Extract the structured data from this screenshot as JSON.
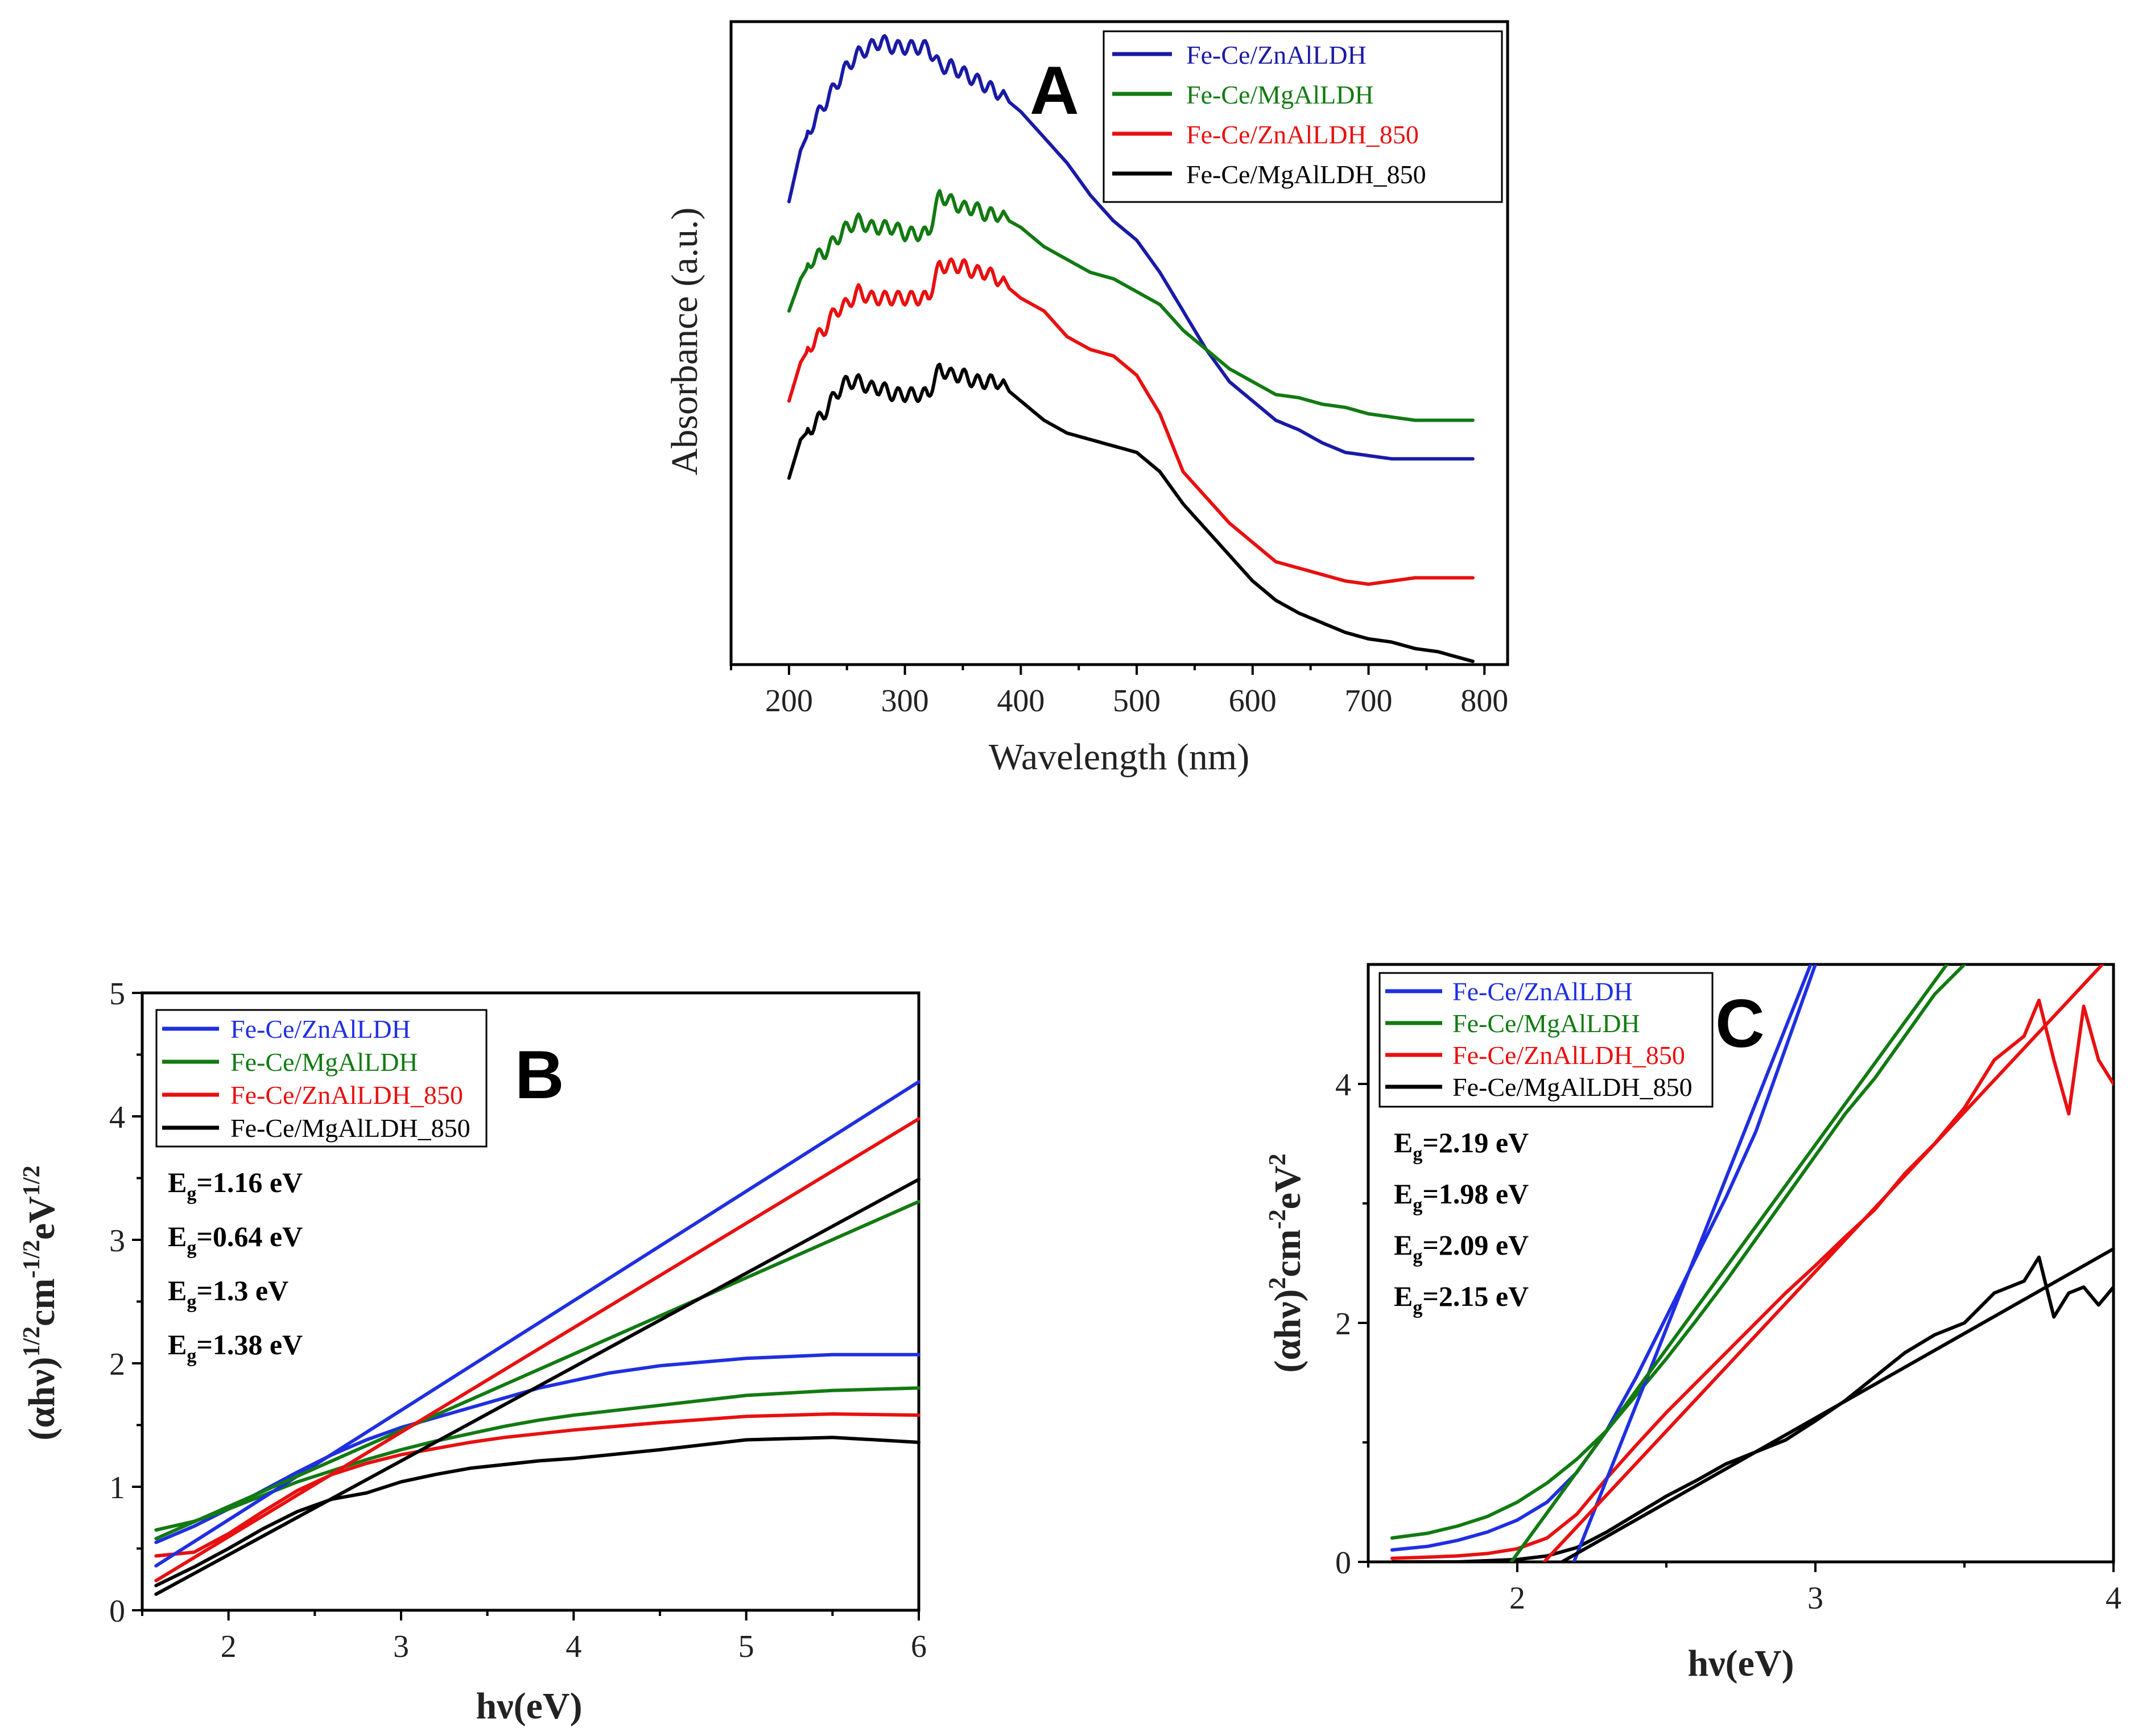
{
  "colors": {
    "zn": "#1a1aa6",
    "mg": "#127a12",
    "zn850": "#e81010",
    "mg850": "#000000",
    "zn_bc": "#1f2fe0"
  },
  "chart_data": [
    {
      "id": "A",
      "type": "line",
      "panel_label": "A",
      "xlabel": "Wavelength (nm)",
      "ylabel": "Absorbance (a.u.)",
      "xlim": [
        150,
        820
      ],
      "ylim": [
        0,
        1
      ],
      "xticks": [
        200,
        300,
        400,
        500,
        600,
        700,
        800
      ],
      "yticks": [],
      "legend": [
        "Fe-Ce/ZnAlLDH",
        "Fe-Ce/MgAlLDH",
        "Fe-Ce/ZnAlLDH_850",
        "Fe-Ce/MgAlLDH_850"
      ],
      "series": [
        {
          "name": "Fe-Ce/ZnAlLDH",
          "color_key": "zn",
          "x": [
            200,
            210,
            220,
            230,
            240,
            250,
            260,
            270,
            280,
            290,
            300,
            310,
            320,
            330,
            340,
            350,
            360,
            370,
            380,
            400,
            420,
            440,
            460,
            480,
            500,
            520,
            540,
            560,
            580,
            600,
            620,
            640,
            660,
            680,
            700,
            720,
            740,
            760,
            780,
            790
          ],
          "y": [
            0.72,
            0.8,
            0.84,
            0.87,
            0.9,
            0.93,
            0.95,
            0.96,
            0.97,
            0.96,
            0.96,
            0.96,
            0.96,
            0.93,
            0.93,
            0.92,
            0.91,
            0.9,
            0.89,
            0.86,
            0.82,
            0.78,
            0.73,
            0.69,
            0.66,
            0.61,
            0.55,
            0.49,
            0.44,
            0.41,
            0.38,
            0.365,
            0.345,
            0.33,
            0.325,
            0.32,
            0.32,
            0.32,
            0.32,
            0.32
          ]
        },
        {
          "name": "Fe-Ce/MgAlLDH",
          "color_key": "mg",
          "x": [
            200,
            210,
            220,
            230,
            240,
            250,
            260,
            270,
            280,
            290,
            300,
            310,
            320,
            330,
            340,
            350,
            360,
            370,
            380,
            400,
            420,
            440,
            460,
            480,
            500,
            520,
            540,
            560,
            580,
            600,
            620,
            640,
            660,
            680,
            700,
            720,
            740,
            760,
            780,
            790
          ],
          "y": [
            0.55,
            0.6,
            0.63,
            0.64,
            0.66,
            0.68,
            0.69,
            0.68,
            0.68,
            0.68,
            0.67,
            0.67,
            0.67,
            0.73,
            0.72,
            0.71,
            0.71,
            0.7,
            0.7,
            0.68,
            0.65,
            0.63,
            0.61,
            0.6,
            0.58,
            0.56,
            0.52,
            0.49,
            0.46,
            0.44,
            0.42,
            0.415,
            0.405,
            0.4,
            0.39,
            0.385,
            0.38,
            0.38,
            0.38,
            0.38
          ]
        },
        {
          "name": "Fe-Ce/ZnAlLDH_850",
          "color_key": "zn850",
          "x": [
            200,
            210,
            220,
            230,
            240,
            250,
            260,
            270,
            280,
            290,
            300,
            310,
            320,
            330,
            340,
            350,
            360,
            370,
            380,
            400,
            420,
            440,
            460,
            480,
            500,
            520,
            540,
            560,
            580,
            600,
            620,
            640,
            660,
            680,
            700,
            720,
            740,
            760,
            780,
            790
          ],
          "y": [
            0.41,
            0.47,
            0.5,
            0.52,
            0.55,
            0.56,
            0.58,
            0.57,
            0.57,
            0.57,
            0.57,
            0.57,
            0.57,
            0.62,
            0.62,
            0.62,
            0.61,
            0.61,
            0.6,
            0.57,
            0.55,
            0.51,
            0.49,
            0.48,
            0.45,
            0.39,
            0.3,
            0.26,
            0.22,
            0.19,
            0.16,
            0.15,
            0.14,
            0.13,
            0.125,
            0.13,
            0.135,
            0.135,
            0.135,
            0.135
          ]
        },
        {
          "name": "Fe-Ce/MgAlLDH_850",
          "color_key": "mg850",
          "x": [
            200,
            210,
            220,
            230,
            240,
            250,
            260,
            270,
            280,
            290,
            300,
            310,
            320,
            330,
            340,
            350,
            360,
            370,
            380,
            400,
            420,
            440,
            460,
            480,
            500,
            520,
            540,
            560,
            580,
            600,
            620,
            640,
            660,
            680,
            700,
            720,
            740,
            760,
            780,
            790
          ],
          "y": [
            0.29,
            0.35,
            0.37,
            0.39,
            0.42,
            0.44,
            0.44,
            0.43,
            0.43,
            0.42,
            0.42,
            0.42,
            0.42,
            0.46,
            0.45,
            0.45,
            0.44,
            0.44,
            0.44,
            0.41,
            0.38,
            0.36,
            0.35,
            0.34,
            0.33,
            0.3,
            0.25,
            0.21,
            0.17,
            0.13,
            0.1,
            0.08,
            0.065,
            0.05,
            0.04,
            0.035,
            0.025,
            0.02,
            0.01,
            0.005
          ]
        }
      ]
    },
    {
      "id": "B",
      "type": "line",
      "panel_label": "B",
      "xlabel": "hν(eV)",
      "ylabel": "(αhν)^1/2cm^-1/2eV^1/2",
      "ylabel_parts": {
        "base1": "(αhν)",
        "sup1": "1/2",
        "base2": "cm",
        "sup2": "-1/2",
        "base3": "eV",
        "sup3": "1/2"
      },
      "xlim": [
        1.5,
        6
      ],
      "ylim": [
        0,
        5
      ],
      "xticks": [
        2,
        3,
        4,
        5,
        6
      ],
      "yticks": [
        0,
        1,
        2,
        3,
        4,
        5
      ],
      "legend": [
        "Fe-Ce/ZnAlLDH",
        "Fe-Ce/MgAlLDH",
        "Fe-Ce/ZnAlLDH_850",
        "Fe-Ce/MgAlLDH_850"
      ],
      "annotations": [
        {
          "label": "E",
          "sub": "g",
          "value": "=1.16 eV"
        },
        {
          "label": "E",
          "sub": "g",
          "value": "=0.64 eV"
        },
        {
          "label": "E",
          "sub": "g",
          "value": "=1.3 eV"
        },
        {
          "label": "E",
          "sub": "g",
          "value": "=1.38 eV"
        }
      ],
      "series": [
        {
          "name": "Fe-Ce/ZnAlLDH",
          "color_key": "zn_bc",
          "x": [
            1.58,
            1.8,
            2.0,
            2.2,
            2.4,
            2.6,
            2.8,
            3.0,
            3.2,
            3.4,
            3.6,
            3.8,
            4.0,
            4.2,
            4.5,
            5.0,
            5.5,
            6.0
          ],
          "y": [
            0.55,
            0.68,
            0.82,
            0.97,
            1.12,
            1.26,
            1.38,
            1.48,
            1.56,
            1.64,
            1.72,
            1.8,
            1.86,
            1.92,
            1.98,
            2.04,
            2.07,
            2.07
          ]
        },
        {
          "name": "Fe-Ce/MgAlLDH",
          "color_key": "mg",
          "x": [
            1.58,
            1.8,
            2.0,
            2.2,
            2.4,
            2.6,
            2.8,
            3.0,
            3.2,
            3.4,
            3.6,
            3.8,
            4.0,
            4.5,
            5.0,
            5.5,
            6.0
          ],
          "y": [
            0.65,
            0.72,
            0.82,
            0.93,
            1.04,
            1.13,
            1.22,
            1.3,
            1.37,
            1.43,
            1.49,
            1.54,
            1.58,
            1.66,
            1.74,
            1.78,
            1.8
          ]
        },
        {
          "name": "Fe-Ce/ZnAlLDH_850",
          "color_key": "zn850",
          "x": [
            1.58,
            1.8,
            2.0,
            2.2,
            2.4,
            2.6,
            2.8,
            3.0,
            3.2,
            3.4,
            3.6,
            3.8,
            4.0,
            4.5,
            5.0,
            5.5,
            6.0
          ],
          "y": [
            0.44,
            0.47,
            0.62,
            0.8,
            0.97,
            1.1,
            1.19,
            1.26,
            1.31,
            1.36,
            1.4,
            1.43,
            1.46,
            1.52,
            1.57,
            1.59,
            1.58
          ]
        },
        {
          "name": "Fe-Ce/MgAlLDH_850",
          "color_key": "mg850",
          "x": [
            1.58,
            1.8,
            2.0,
            2.2,
            2.4,
            2.6,
            2.8,
            3.0,
            3.2,
            3.4,
            3.6,
            3.8,
            4.0,
            4.5,
            5.0,
            5.5,
            6.0
          ],
          "y": [
            0.2,
            0.35,
            0.5,
            0.66,
            0.8,
            0.9,
            0.95,
            1.04,
            1.1,
            1.15,
            1.18,
            1.21,
            1.23,
            1.3,
            1.38,
            1.4,
            1.36
          ]
        },
        {
          "name": "fit-ZnAlLDH",
          "color_key": "zn_bc",
          "fit": true,
          "x": [
            1.58,
            6.0
          ],
          "y": [
            0.36,
            4.28
          ]
        },
        {
          "name": "fit-MgAlLDH",
          "color_key": "mg",
          "fit": true,
          "x": [
            1.58,
            6.0
          ],
          "y": [
            0.58,
            3.31
          ]
        },
        {
          "name": "fit-ZnAlLDH_850",
          "color_key": "zn850",
          "fit": true,
          "x": [
            1.58,
            6.0
          ],
          "y": [
            0.24,
            3.98
          ]
        },
        {
          "name": "fit-MgAlLDH_850",
          "color_key": "mg850",
          "fit": true,
          "x": [
            1.58,
            6.0
          ],
          "y": [
            0.13,
            3.49
          ]
        }
      ]
    },
    {
      "id": "C",
      "type": "line",
      "panel_label": "C",
      "xlabel": "hν(eV)",
      "ylabel": "(αhν)^2cm^-2eV^2",
      "ylabel_parts": {
        "base1": "(αhν)",
        "sup1": "2",
        "base2": "cm",
        "sup2": "-2",
        "base3": "eV",
        "sup3": "2"
      },
      "xlim": [
        1.5,
        4
      ],
      "ylim": [
        0,
        5
      ],
      "xticks": [
        2,
        3,
        4
      ],
      "yticks": [
        0,
        2,
        4
      ],
      "legend": [
        "Fe-Ce/ZnAlLDH",
        "Fe-Ce/MgAlLDH",
        "Fe-Ce/ZnAlLDH_850",
        "Fe-Ce/MgAlLDH_850"
      ],
      "annotations": [
        {
          "label": "E",
          "sub": "g",
          "value": "=2.19 eV"
        },
        {
          "label": "E",
          "sub": "g",
          "value": "=1.98 eV"
        },
        {
          "label": "E",
          "sub": "g",
          "value": "=2.09 eV"
        },
        {
          "label": "E",
          "sub": "g",
          "value": "=2.15 eV"
        }
      ],
      "series": [
        {
          "name": "Fe-Ce/ZnAlLDH",
          "color_key": "zn_bc",
          "x": [
            1.58,
            1.7,
            1.8,
            1.9,
            2.0,
            2.1,
            2.2,
            2.3,
            2.4,
            2.5,
            2.6,
            2.7,
            2.8,
            2.9,
            3.0
          ],
          "y": [
            0.1,
            0.13,
            0.18,
            0.25,
            0.35,
            0.5,
            0.75,
            1.1,
            1.55,
            2.05,
            2.55,
            3.05,
            3.6,
            4.3,
            5.0
          ]
        },
        {
          "name": "Fe-Ce/MgAlLDH",
          "color_key": "mg",
          "x": [
            1.58,
            1.7,
            1.8,
            1.9,
            2.0,
            2.1,
            2.2,
            2.3,
            2.4,
            2.5,
            2.6,
            2.7,
            2.8,
            2.9,
            3.0,
            3.1,
            3.2,
            3.3,
            3.4,
            3.5
          ],
          "y": [
            0.2,
            0.24,
            0.3,
            0.38,
            0.5,
            0.66,
            0.86,
            1.1,
            1.4,
            1.7,
            2.02,
            2.35,
            2.7,
            3.05,
            3.4,
            3.75,
            4.05,
            4.4,
            4.75,
            5.0
          ]
        },
        {
          "name": "Fe-Ce/ZnAlLDH_850",
          "color_key": "zn850",
          "x": [
            1.58,
            1.7,
            1.8,
            1.9,
            2.0,
            2.1,
            2.2,
            2.3,
            2.4,
            2.5,
            2.6,
            2.7,
            2.8,
            2.9,
            3.0,
            3.1,
            3.2,
            3.3,
            3.4,
            3.5,
            3.6,
            3.7,
            3.75,
            3.8,
            3.85,
            3.9,
            3.95,
            4.0
          ],
          "y": [
            0.03,
            0.04,
            0.05,
            0.07,
            0.11,
            0.2,
            0.4,
            0.7,
            0.98,
            1.25,
            1.5,
            1.75,
            2.0,
            2.25,
            2.48,
            2.72,
            2.95,
            3.25,
            3.5,
            3.8,
            4.2,
            4.4,
            4.7,
            4.2,
            3.75,
            4.65,
            4.2,
            4.0
          ]
        },
        {
          "name": "Fe-Ce/MgAlLDH_850",
          "color_key": "mg850",
          "x": [
            1.58,
            1.7,
            1.8,
            1.9,
            2.0,
            2.1,
            2.2,
            2.3,
            2.4,
            2.5,
            2.6,
            2.7,
            2.8,
            2.9,
            3.0,
            3.1,
            3.2,
            3.3,
            3.4,
            3.5,
            3.6,
            3.7,
            3.75,
            3.8,
            3.85,
            3.9,
            3.95,
            4.0
          ],
          "y": [
            0.0,
            0.0,
            0.0,
            0.01,
            0.02,
            0.05,
            0.12,
            0.25,
            0.4,
            0.55,
            0.68,
            0.82,
            0.92,
            1.02,
            1.18,
            1.35,
            1.55,
            1.75,
            1.9,
            2.0,
            2.25,
            2.35,
            2.55,
            2.05,
            2.25,
            2.3,
            2.15,
            2.3
          ]
        },
        {
          "name": "fit-ZnAlLDH",
          "color_key": "zn_bc",
          "fit": true,
          "x": [
            2.19,
            3.0
          ],
          "y": [
            0.0,
            5.1
          ]
        },
        {
          "name": "fit-MgAlLDH",
          "color_key": "mg",
          "fit": true,
          "x": [
            1.98,
            3.47
          ],
          "y": [
            0.0,
            5.1
          ]
        },
        {
          "name": "fit-ZnAlLDH_850",
          "color_key": "zn850",
          "fit": true,
          "x": [
            2.09,
            4.0
          ],
          "y": [
            0.0,
            5.1
          ]
        },
        {
          "name": "fit-MgAlLDH_850",
          "color_key": "mg850",
          "fit": true,
          "x": [
            2.15,
            4.0
          ],
          "y": [
            0.0,
            2.62
          ]
        }
      ]
    }
  ]
}
